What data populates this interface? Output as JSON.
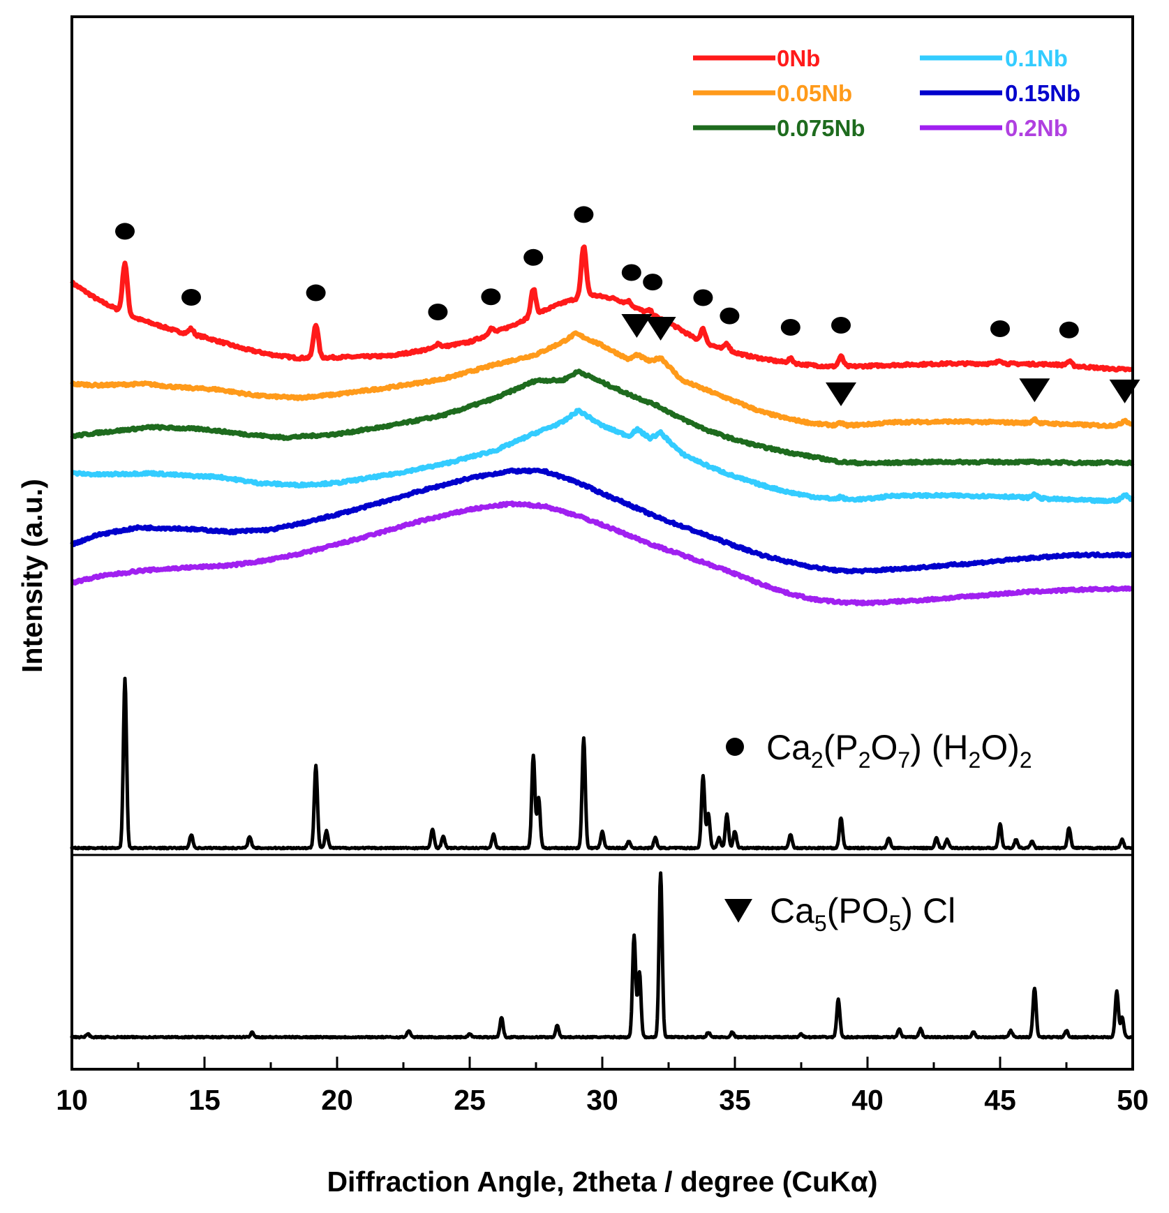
{
  "chart_data": {
    "type": "line",
    "title": "",
    "xlabel": "Diffraction Angle, 2theta / degree (CuKα)",
    "ylabel": "Intensity (a.u.)",
    "xlim": [
      10,
      50
    ],
    "x_ticks": [
      "10",
      "15",
      "20",
      "25",
      "30",
      "35",
      "40",
      "45",
      "50"
    ],
    "grid": false,
    "legend_position": "top-right",
    "series": [
      {
        "name": "0Nb",
        "color": "#ff1a1a",
        "label_color": "#ff1a1a",
        "points": [
          [
            10,
            8.95
          ],
          [
            11,
            8.7
          ],
          [
            11.8,
            8.55
          ],
          [
            12.5,
            8.43
          ],
          [
            14,
            8.25
          ],
          [
            15,
            8.17
          ],
          [
            16.5,
            8.0
          ],
          [
            17.5,
            7.92
          ],
          [
            18.5,
            7.87
          ],
          [
            20,
            7.88
          ],
          [
            22,
            7.9
          ],
          [
            23.5,
            8.0
          ],
          [
            25,
            8.1
          ],
          [
            26.5,
            8.32
          ],
          [
            27.5,
            8.5
          ],
          [
            28.5,
            8.66
          ],
          [
            29.5,
            8.78
          ],
          [
            30.5,
            8.72
          ],
          [
            31.5,
            8.55
          ],
          [
            32.5,
            8.38
          ],
          [
            33.5,
            8.15
          ],
          [
            34.5,
            8.0
          ],
          [
            35.5,
            7.9
          ],
          [
            36.5,
            7.83
          ],
          [
            37.5,
            7.78
          ],
          [
            38.5,
            7.75
          ],
          [
            39.5,
            7.75
          ],
          [
            41,
            7.77
          ],
          [
            43,
            7.79
          ],
          [
            45,
            7.79
          ],
          [
            47,
            7.78
          ],
          [
            49,
            7.72
          ],
          [
            50,
            7.7
          ]
        ],
        "peaks": [
          [
            12,
            0.72
          ],
          [
            14.5,
            0.08
          ],
          [
            19.2,
            0.48
          ],
          [
            23.8,
            0.06
          ],
          [
            25.8,
            0.08
          ],
          [
            27.4,
            0.38
          ],
          [
            29.3,
            0.72
          ],
          [
            31,
            0.05
          ],
          [
            31.8,
            0.05
          ],
          [
            33.8,
            0.18
          ],
          [
            34.7,
            0.1
          ],
          [
            37.1,
            0.06
          ],
          [
            39,
            0.14
          ],
          [
            45,
            0.05
          ],
          [
            47.6,
            0.06
          ]
        ]
      },
      {
        "name": "0.05Nb",
        "color": "#ff9a1a",
        "label_color": "#ff9a1a",
        "points": [
          [
            10,
            7.5
          ],
          [
            11,
            7.48
          ],
          [
            12.8,
            7.5
          ],
          [
            14,
            7.45
          ],
          [
            15.5,
            7.42
          ],
          [
            17,
            7.33
          ],
          [
            18.5,
            7.3
          ],
          [
            20,
            7.35
          ],
          [
            22,
            7.45
          ],
          [
            24,
            7.57
          ],
          [
            26,
            7.78
          ],
          [
            27.5,
            7.92
          ],
          [
            28.5,
            8.1
          ],
          [
            29,
            8.22
          ],
          [
            30,
            8.05
          ],
          [
            31,
            7.85
          ],
          [
            31.3,
            7.92
          ],
          [
            31.8,
            7.82
          ],
          [
            32.2,
            7.88
          ],
          [
            33,
            7.55
          ],
          [
            34,
            7.4
          ],
          [
            35,
            7.25
          ],
          [
            36,
            7.1
          ],
          [
            37,
            7.0
          ],
          [
            38,
            6.93
          ],
          [
            39,
            6.9
          ],
          [
            40,
            6.92
          ],
          [
            41,
            6.95
          ],
          [
            43,
            6.96
          ],
          [
            45,
            6.95
          ],
          [
            47,
            6.93
          ],
          [
            49,
            6.9
          ],
          [
            50,
            6.93
          ]
        ],
        "peaks": [
          [
            39,
            0.04
          ],
          [
            46.3,
            0.06
          ],
          [
            49.7,
            0.06
          ]
        ]
      },
      {
        "name": "0.075Nb",
        "color": "#1e6b1e",
        "label_color": "#1e6b1e",
        "points": [
          [
            10,
            6.75
          ],
          [
            11,
            6.8
          ],
          [
            13,
            6.88
          ],
          [
            15,
            6.85
          ],
          [
            16.5,
            6.78
          ],
          [
            18,
            6.73
          ],
          [
            20,
            6.78
          ],
          [
            22,
            6.9
          ],
          [
            24,
            7.05
          ],
          [
            26,
            7.3
          ],
          [
            27.5,
            7.55
          ],
          [
            28.5,
            7.55
          ],
          [
            29.1,
            7.68
          ],
          [
            30,
            7.52
          ],
          [
            31,
            7.35
          ],
          [
            32,
            7.2
          ],
          [
            33,
            7.0
          ],
          [
            34,
            6.83
          ],
          [
            35,
            6.7
          ],
          [
            36,
            6.6
          ],
          [
            37,
            6.52
          ],
          [
            38,
            6.45
          ],
          [
            39,
            6.38
          ],
          [
            40,
            6.36
          ],
          [
            42,
            6.38
          ],
          [
            44,
            6.38
          ],
          [
            46,
            6.38
          ],
          [
            48,
            6.37
          ],
          [
            50,
            6.37
          ]
        ],
        "peaks": []
      },
      {
        "name": "0.1Nb",
        "color": "#33ccff",
        "label_color": "#33ccff",
        "points": [
          [
            10,
            6.22
          ],
          [
            11,
            6.2
          ],
          [
            13,
            6.22
          ],
          [
            14.5,
            6.18
          ],
          [
            15.5,
            6.17
          ],
          [
            17,
            6.08
          ],
          [
            18.5,
            6.05
          ],
          [
            20,
            6.08
          ],
          [
            22,
            6.2
          ],
          [
            24,
            6.35
          ],
          [
            26,
            6.55
          ],
          [
            27.5,
            6.8
          ],
          [
            28.5,
            6.95
          ],
          [
            29.1,
            7.12
          ],
          [
            30,
            6.9
          ],
          [
            31,
            6.75
          ],
          [
            31.3,
            6.85
          ],
          [
            31.8,
            6.72
          ],
          [
            32.2,
            6.8
          ],
          [
            33,
            6.5
          ],
          [
            34,
            6.32
          ],
          [
            35,
            6.17
          ],
          [
            36,
            6.05
          ],
          [
            37,
            5.95
          ],
          [
            38,
            5.88
          ],
          [
            39,
            5.84
          ],
          [
            40,
            5.85
          ],
          [
            41,
            5.9
          ],
          [
            43,
            5.9
          ],
          [
            45,
            5.89
          ],
          [
            47,
            5.85
          ],
          [
            49,
            5.82
          ],
          [
            50,
            5.86
          ]
        ],
        "peaks": [
          [
            39,
            0.04
          ],
          [
            46.3,
            0.06
          ],
          [
            49.7,
            0.06
          ]
        ]
      },
      {
        "name": "0.15Nb",
        "color": "#0000cc",
        "label_color": "#0000cc",
        "points": [
          [
            10,
            5.2
          ],
          [
            11,
            5.34
          ],
          [
            12.5,
            5.44
          ],
          [
            14,
            5.43
          ],
          [
            16,
            5.38
          ],
          [
            17.5,
            5.41
          ],
          [
            19,
            5.53
          ],
          [
            21,
            5.73
          ],
          [
            23,
            5.95
          ],
          [
            25,
            6.15
          ],
          [
            26.5,
            6.25
          ],
          [
            27.8,
            6.25
          ],
          [
            29,
            6.1
          ],
          [
            30,
            5.93
          ],
          [
            31,
            5.77
          ],
          [
            32,
            5.6
          ],
          [
            33,
            5.46
          ],
          [
            34,
            5.32
          ],
          [
            35,
            5.18
          ],
          [
            36,
            5.05
          ],
          [
            37,
            4.95
          ],
          [
            38,
            4.87
          ],
          [
            39,
            4.82
          ],
          [
            40,
            4.82
          ],
          [
            42,
            4.87
          ],
          [
            44,
            4.93
          ],
          [
            46,
            5.0
          ],
          [
            48,
            5.05
          ],
          [
            50,
            5.05
          ]
        ],
        "peaks": []
      },
      {
        "name": "0.2Nb",
        "color": "#a020f0",
        "label_color": "#b040e0",
        "points": [
          [
            10,
            4.65
          ],
          [
            11,
            4.74
          ],
          [
            12.5,
            4.82
          ],
          [
            14,
            4.86
          ],
          [
            16,
            4.9
          ],
          [
            17.5,
            4.98
          ],
          [
            19,
            5.1
          ],
          [
            21,
            5.3
          ],
          [
            23,
            5.52
          ],
          [
            25,
            5.7
          ],
          [
            26.5,
            5.78
          ],
          [
            27.8,
            5.75
          ],
          [
            29,
            5.62
          ],
          [
            30,
            5.48
          ],
          [
            31,
            5.33
          ],
          [
            32,
            5.18
          ],
          [
            33,
            5.05
          ],
          [
            34,
            4.92
          ],
          [
            35,
            4.78
          ],
          [
            36,
            4.63
          ],
          [
            37,
            4.5
          ],
          [
            38,
            4.41
          ],
          [
            39,
            4.37
          ],
          [
            40,
            4.36
          ],
          [
            42,
            4.4
          ],
          [
            44,
            4.46
          ],
          [
            46,
            4.52
          ],
          [
            48,
            4.55
          ],
          [
            50,
            4.57
          ]
        ],
        "peaks": []
      }
    ],
    "reference_patterns": [
      {
        "name": "Ca2(P2O7) (H2O)2",
        "marker": "circle",
        "color": "#000000",
        "peaks": [
          [
            12,
            1.0
          ],
          [
            14.5,
            0.08
          ],
          [
            16.7,
            0.07
          ],
          [
            19.2,
            0.49
          ],
          [
            19.6,
            0.1
          ],
          [
            23.6,
            0.11
          ],
          [
            24,
            0.07
          ],
          [
            25.9,
            0.08
          ],
          [
            27.4,
            0.55
          ],
          [
            27.6,
            0.3
          ],
          [
            29.3,
            0.65
          ],
          [
            30,
            0.1
          ],
          [
            31,
            0.04
          ],
          [
            32,
            0.06
          ],
          [
            33.8,
            0.43
          ],
          [
            34,
            0.2
          ],
          [
            34.4,
            0.06
          ],
          [
            34.7,
            0.2
          ],
          [
            35,
            0.1
          ],
          [
            37.1,
            0.08
          ],
          [
            39,
            0.18
          ],
          [
            40.8,
            0.06
          ],
          [
            42.6,
            0.06
          ],
          [
            43,
            0.05
          ],
          [
            45,
            0.14
          ],
          [
            45.6,
            0.05
          ],
          [
            46.2,
            0.04
          ],
          [
            47.6,
            0.12
          ],
          [
            49.6,
            0.05
          ]
        ]
      },
      {
        "name": "Ca5(PO5) Cl",
        "marker": "triangle",
        "color": "#000000",
        "peaks": [
          [
            10.6,
            0.02
          ],
          [
            16.8,
            0.03
          ],
          [
            22.7,
            0.04
          ],
          [
            25,
            0.02
          ],
          [
            26.2,
            0.12
          ],
          [
            28.3,
            0.07
          ],
          [
            31.2,
            0.62
          ],
          [
            31.4,
            0.4
          ],
          [
            32.2,
            1.0
          ],
          [
            34,
            0.03
          ],
          [
            34.9,
            0.03
          ],
          [
            37.5,
            0.02
          ],
          [
            38.9,
            0.23
          ],
          [
            41.2,
            0.05
          ],
          [
            42,
            0.05
          ],
          [
            44,
            0.03
          ],
          [
            45.4,
            0.04
          ],
          [
            46.3,
            0.3
          ],
          [
            47.5,
            0.04
          ],
          [
            49.4,
            0.28
          ],
          [
            49.6,
            0.12
          ]
        ]
      }
    ],
    "phase_markers": [
      {
        "series": "0Nb",
        "marker": "circle",
        "x": [
          12,
          14.5,
          19.2,
          23.8,
          25.8,
          27.4,
          29.3,
          31.1,
          31.9,
          33.8,
          34.8,
          37.1,
          39,
          45,
          47.6
        ]
      },
      {
        "series": "0.05Nb",
        "marker": "triangle",
        "x": [
          31.3,
          32.2,
          39,
          46.3,
          49.7
        ]
      }
    ],
    "reference_labels": {
      "p1": {
        "base": "Ca",
        "sub1": "2",
        "mid1": "(P",
        "sub2": "2",
        "mid2": "O",
        "sub3": "7",
        "mid3": ") (H",
        "sub4": "2",
        "mid4": "O)",
        "sub5": "2"
      },
      "p2": {
        "base": "Ca",
        "sub1": "5",
        "mid1": "(PO",
        "sub2": "5",
        "mid2": ") Cl"
      }
    }
  }
}
